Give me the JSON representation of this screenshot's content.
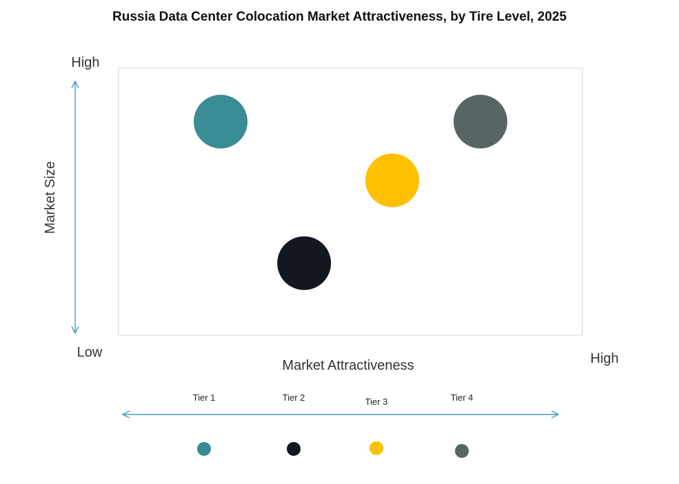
{
  "chart_data": {
    "type": "scatter",
    "title": "Russia Data Center Colocation Market Attractiveness,  by Tire Level, 2025",
    "xlabel": "Market Attractiveness",
    "ylabel": "Market Size",
    "x_low_label": "Low",
    "x_high_label": "High",
    "y_high_label": "High",
    "xlim": [
      0,
      1
    ],
    "ylim": [
      0,
      1
    ],
    "grid": false,
    "legend_position": "bottom",
    "series": [
      {
        "name": "Tier 1",
        "x": 0.22,
        "y": 0.8,
        "color": "#3A8C94"
      },
      {
        "name": "Tier 2",
        "x": 0.4,
        "y": 0.27,
        "color": "#121720"
      },
      {
        "name": "Tier 3",
        "x": 0.59,
        "y": 0.58,
        "color": "#FFC000"
      },
      {
        "name": "Tier 4",
        "x": 0.78,
        "y": 0.8,
        "color": "#586565"
      }
    ]
  }
}
